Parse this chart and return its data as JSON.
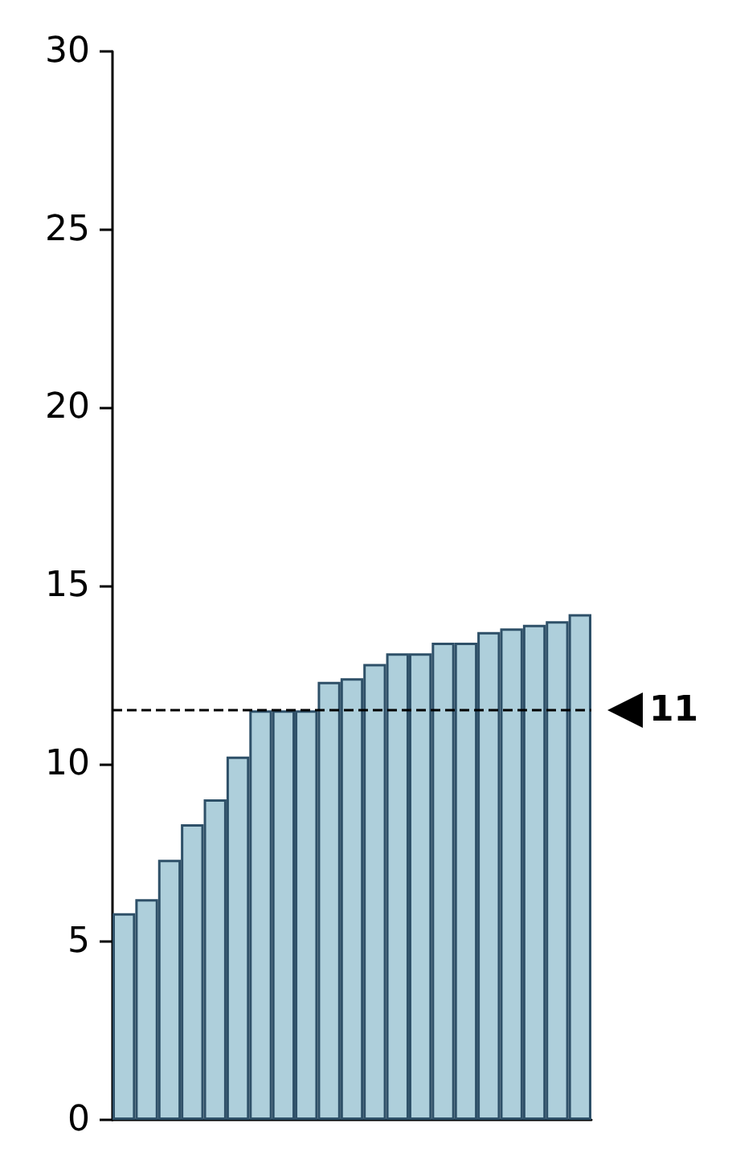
{
  "chart_data": {
    "type": "bar",
    "categories": [
      null,
      null,
      null,
      null,
      null,
      null,
      null,
      null,
      null,
      null,
      null,
      null,
      null,
      null,
      null,
      null,
      null,
      null,
      null,
      null,
      null
    ],
    "values": [
      5.8,
      6.2,
      7.3,
      8.3,
      9.0,
      10.2,
      11.5,
      11.5,
      11.5,
      12.3,
      12.4,
      12.8,
      13.1,
      13.1,
      13.4,
      13.4,
      13.7,
      13.8,
      13.9,
      14.0,
      14.2
    ],
    "color": "#aecfdb",
    "ylim": [
      0,
      30
    ],
    "yticks": [
      0,
      5,
      10,
      15,
      20,
      25,
      30
    ],
    "grid": false,
    "ref_lines": [
      {
        "axis": "y",
        "value": 11.5,
        "label": "11",
        "color": "#000000",
        "line_style": "dashed"
      }
    ]
  }
}
